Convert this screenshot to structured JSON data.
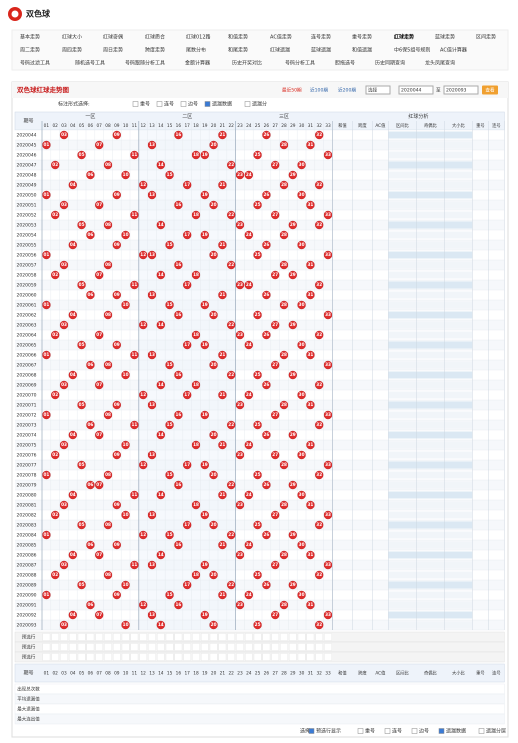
{
  "header": {
    "title": "双色球"
  },
  "nav": [
    [
      "基本走势",
      "红球大小",
      "红球奇偶",
      "红球质合",
      "红球012路",
      "和值走势",
      "AC值走势",
      "连号走势",
      "重号走势",
      "红球走势",
      "蓝球走势",
      "区间走势"
    ],
    [
      "周二走势",
      "周四走势",
      "周日走势",
      "跨度走势",
      "尾数分布",
      "和尾走势",
      "红球遗漏",
      "蓝球遗漏",
      "和值遗漏",
      "中6保5组号规则",
      "AC值计算器"
    ],
    [
      "号码过滤工具",
      "随机选号工具",
      "号码跟随分析工具",
      "金额计算器",
      "历史开奖对比",
      "号码分析工具",
      "胆拖选号",
      "历史同期查询",
      "龙头凤尾查询"
    ]
  ],
  "chart": {
    "title": "双色球红球走势图",
    "range_links": [
      "最近50期",
      "近100期",
      "近200期"
    ],
    "select": "选择",
    "from": "2020044",
    "to_label": "至",
    "to": "2020093",
    "button": "查看",
    "filter_label": "标注形式选择:",
    "filter_options": [
      "重号",
      "连号",
      "边号",
      "遗漏数据",
      "遗漏分"
    ]
  },
  "table": {
    "issue_header": "期号",
    "zones": [
      "一区",
      "二区",
      "三区"
    ],
    "analysis_header": "红球分析",
    "numbers": [
      "01",
      "02",
      "03",
      "04",
      "05",
      "06",
      "07",
      "08",
      "09",
      "10",
      "11",
      "12",
      "13",
      "14",
      "15",
      "16",
      "17",
      "18",
      "19",
      "20",
      "21",
      "22",
      "23",
      "24",
      "25",
      "26",
      "27",
      "28",
      "29",
      "30",
      "31",
      "32",
      "33"
    ],
    "stat_headers": [
      "和值",
      "跨度",
      "AC值",
      "区间比",
      "奇偶比",
      "大小比",
      "重号",
      "连号"
    ],
    "rows": [
      {
        "issue": "2020044",
        "balls": [
          "03",
          "09",
          "16",
          "21",
          "26",
          "32"
        ]
      },
      {
        "issue": "2020045",
        "balls": [
          "01",
          "07",
          "13",
          "20",
          "28",
          "31"
        ]
      },
      {
        "issue": "2020046",
        "balls": [
          "05",
          "11",
          "18",
          "19",
          "25",
          "33"
        ]
      },
      {
        "issue": "2020047",
        "balls": [
          "02",
          "08",
          "14",
          "22",
          "27",
          "30"
        ]
      },
      {
        "issue": "2020048",
        "balls": [
          "06",
          "10",
          "15",
          "23",
          "24",
          "29"
        ]
      },
      {
        "issue": "2020049",
        "balls": [
          "04",
          "12",
          "17",
          "21",
          "28",
          "32"
        ]
      },
      {
        "issue": "2020050",
        "balls": [
          "01",
          "09",
          "13",
          "19",
          "26",
          "30"
        ]
      },
      {
        "issue": "2020051",
        "balls": [
          "03",
          "07",
          "16",
          "20",
          "25",
          "31"
        ]
      },
      {
        "issue": "2020052",
        "balls": [
          "02",
          "11",
          "18",
          "22",
          "27",
          "33"
        ]
      },
      {
        "issue": "2020053",
        "balls": [
          "05",
          "08",
          "14",
          "23",
          "29",
          "32"
        ]
      },
      {
        "issue": "2020054",
        "balls": [
          "06",
          "10",
          "17",
          "19",
          "24",
          "28"
        ]
      },
      {
        "issue": "2020055",
        "balls": [
          "04",
          "09",
          "15",
          "21",
          "26",
          "30"
        ]
      },
      {
        "issue": "2020056",
        "balls": [
          "01",
          "12",
          "13",
          "20",
          "25",
          "33"
        ]
      },
      {
        "issue": "2020057",
        "balls": [
          "03",
          "08",
          "16",
          "22",
          "28",
          "31"
        ]
      },
      {
        "issue": "2020058",
        "balls": [
          "02",
          "07",
          "14",
          "18",
          "27",
          "29"
        ]
      },
      {
        "issue": "2020059",
        "balls": [
          "05",
          "11",
          "17",
          "23",
          "24",
          "32"
        ]
      },
      {
        "issue": "2020060",
        "balls": [
          "06",
          "09",
          "13",
          "21",
          "26",
          "31"
        ]
      },
      {
        "issue": "2020061",
        "balls": [
          "01",
          "10",
          "15",
          "19",
          "28",
          "30"
        ]
      },
      {
        "issue": "2020062",
        "balls": [
          "04",
          "08",
          "16",
          "20",
          "25",
          "33"
        ]
      },
      {
        "issue": "2020063",
        "balls": [
          "03",
          "12",
          "14",
          "22",
          "27",
          "29"
        ]
      },
      {
        "issue": "2020064",
        "balls": [
          "02",
          "07",
          "18",
          "23",
          "26",
          "32"
        ]
      },
      {
        "issue": "2020065",
        "balls": [
          "05",
          "09",
          "17",
          "19",
          "24",
          "30"
        ]
      },
      {
        "issue": "2020066",
        "balls": [
          "01",
          "11",
          "13",
          "21",
          "28",
          "31"
        ]
      },
      {
        "issue": "2020067",
        "balls": [
          "06",
          "08",
          "15",
          "20",
          "27",
          "33"
        ]
      },
      {
        "issue": "2020068",
        "balls": [
          "04",
          "10",
          "16",
          "22",
          "25",
          "29"
        ]
      },
      {
        "issue": "2020069",
        "balls": [
          "03",
          "07",
          "14",
          "18",
          "26",
          "32"
        ]
      },
      {
        "issue": "2020070",
        "balls": [
          "02",
          "12",
          "17",
          "21",
          "24",
          "30"
        ]
      },
      {
        "issue": "2020071",
        "balls": [
          "05",
          "09",
          "13",
          "23",
          "28",
          "31"
        ]
      },
      {
        "issue": "2020072",
        "balls": [
          "01",
          "08",
          "16",
          "19",
          "27",
          "33"
        ]
      },
      {
        "issue": "2020073",
        "balls": [
          "06",
          "11",
          "15",
          "22",
          "25",
          "32"
        ]
      },
      {
        "issue": "2020074",
        "balls": [
          "04",
          "07",
          "14",
          "20",
          "26",
          "29"
        ]
      },
      {
        "issue": "2020075",
        "balls": [
          "03",
          "10",
          "18",
          "21",
          "24",
          "31"
        ]
      },
      {
        "issue": "2020076",
        "balls": [
          "02",
          "09",
          "13",
          "23",
          "27",
          "30"
        ]
      },
      {
        "issue": "2020077",
        "balls": [
          "05",
          "12",
          "17",
          "19",
          "28",
          "33"
        ]
      },
      {
        "issue": "2020078",
        "balls": [
          "01",
          "08",
          "15",
          "20",
          "25",
          "32"
        ]
      },
      {
        "issue": "2020079",
        "balls": [
          "06",
          "07",
          "16",
          "22",
          "26",
          "29"
        ]
      },
      {
        "issue": "2020080",
        "balls": [
          "04",
          "11",
          "14",
          "21",
          "24",
          "30"
        ]
      },
      {
        "issue": "2020081",
        "balls": [
          "03",
          "09",
          "18",
          "23",
          "28",
          "31"
        ]
      },
      {
        "issue": "2020082",
        "balls": [
          "02",
          "10",
          "13",
          "19",
          "27",
          "33"
        ]
      },
      {
        "issue": "2020083",
        "balls": [
          "05",
          "08",
          "17",
          "20",
          "25",
          "32"
        ]
      },
      {
        "issue": "2020084",
        "balls": [
          "01",
          "12",
          "15",
          "22",
          "26",
          "29"
        ]
      },
      {
        "issue": "2020085",
        "balls": [
          "06",
          "09",
          "16",
          "21",
          "24",
          "30"
        ]
      },
      {
        "issue": "2020086",
        "balls": [
          "04",
          "07",
          "14",
          "23",
          "28",
          "31"
        ]
      },
      {
        "issue": "2020087",
        "balls": [
          "03",
          "11",
          "13",
          "19",
          "27",
          "33"
        ]
      },
      {
        "issue": "2020088",
        "balls": [
          "02",
          "08",
          "18",
          "20",
          "25",
          "32"
        ]
      },
      {
        "issue": "2020089",
        "balls": [
          "05",
          "10",
          "17",
          "22",
          "26",
          "29"
        ]
      },
      {
        "issue": "2020090",
        "balls": [
          "01",
          "09",
          "15",
          "21",
          "24",
          "30"
        ]
      },
      {
        "issue": "2020091",
        "balls": [
          "06",
          "12",
          "16",
          "23",
          "28",
          "31"
        ]
      },
      {
        "issue": "2020092",
        "balls": [
          "04",
          "07",
          "13",
          "19",
          "27",
          "33"
        ]
      },
      {
        "issue": "2020093",
        "balls": [
          "03",
          "10",
          "14",
          "20",
          "25",
          "32"
        ]
      }
    ],
    "preselect_labels": [
      "预选行",
      "预选行",
      "预选行"
    ],
    "summary_labels": [
      "出现总次数",
      "平均遗漏值",
      "最大遗漏值",
      "最大连出值"
    ]
  },
  "footer": {
    "label": "选择:",
    "options": [
      "预选行显示",
      "重号",
      "连号",
      "边号",
      "遗漏数据",
      "遗漏分层"
    ]
  }
}
